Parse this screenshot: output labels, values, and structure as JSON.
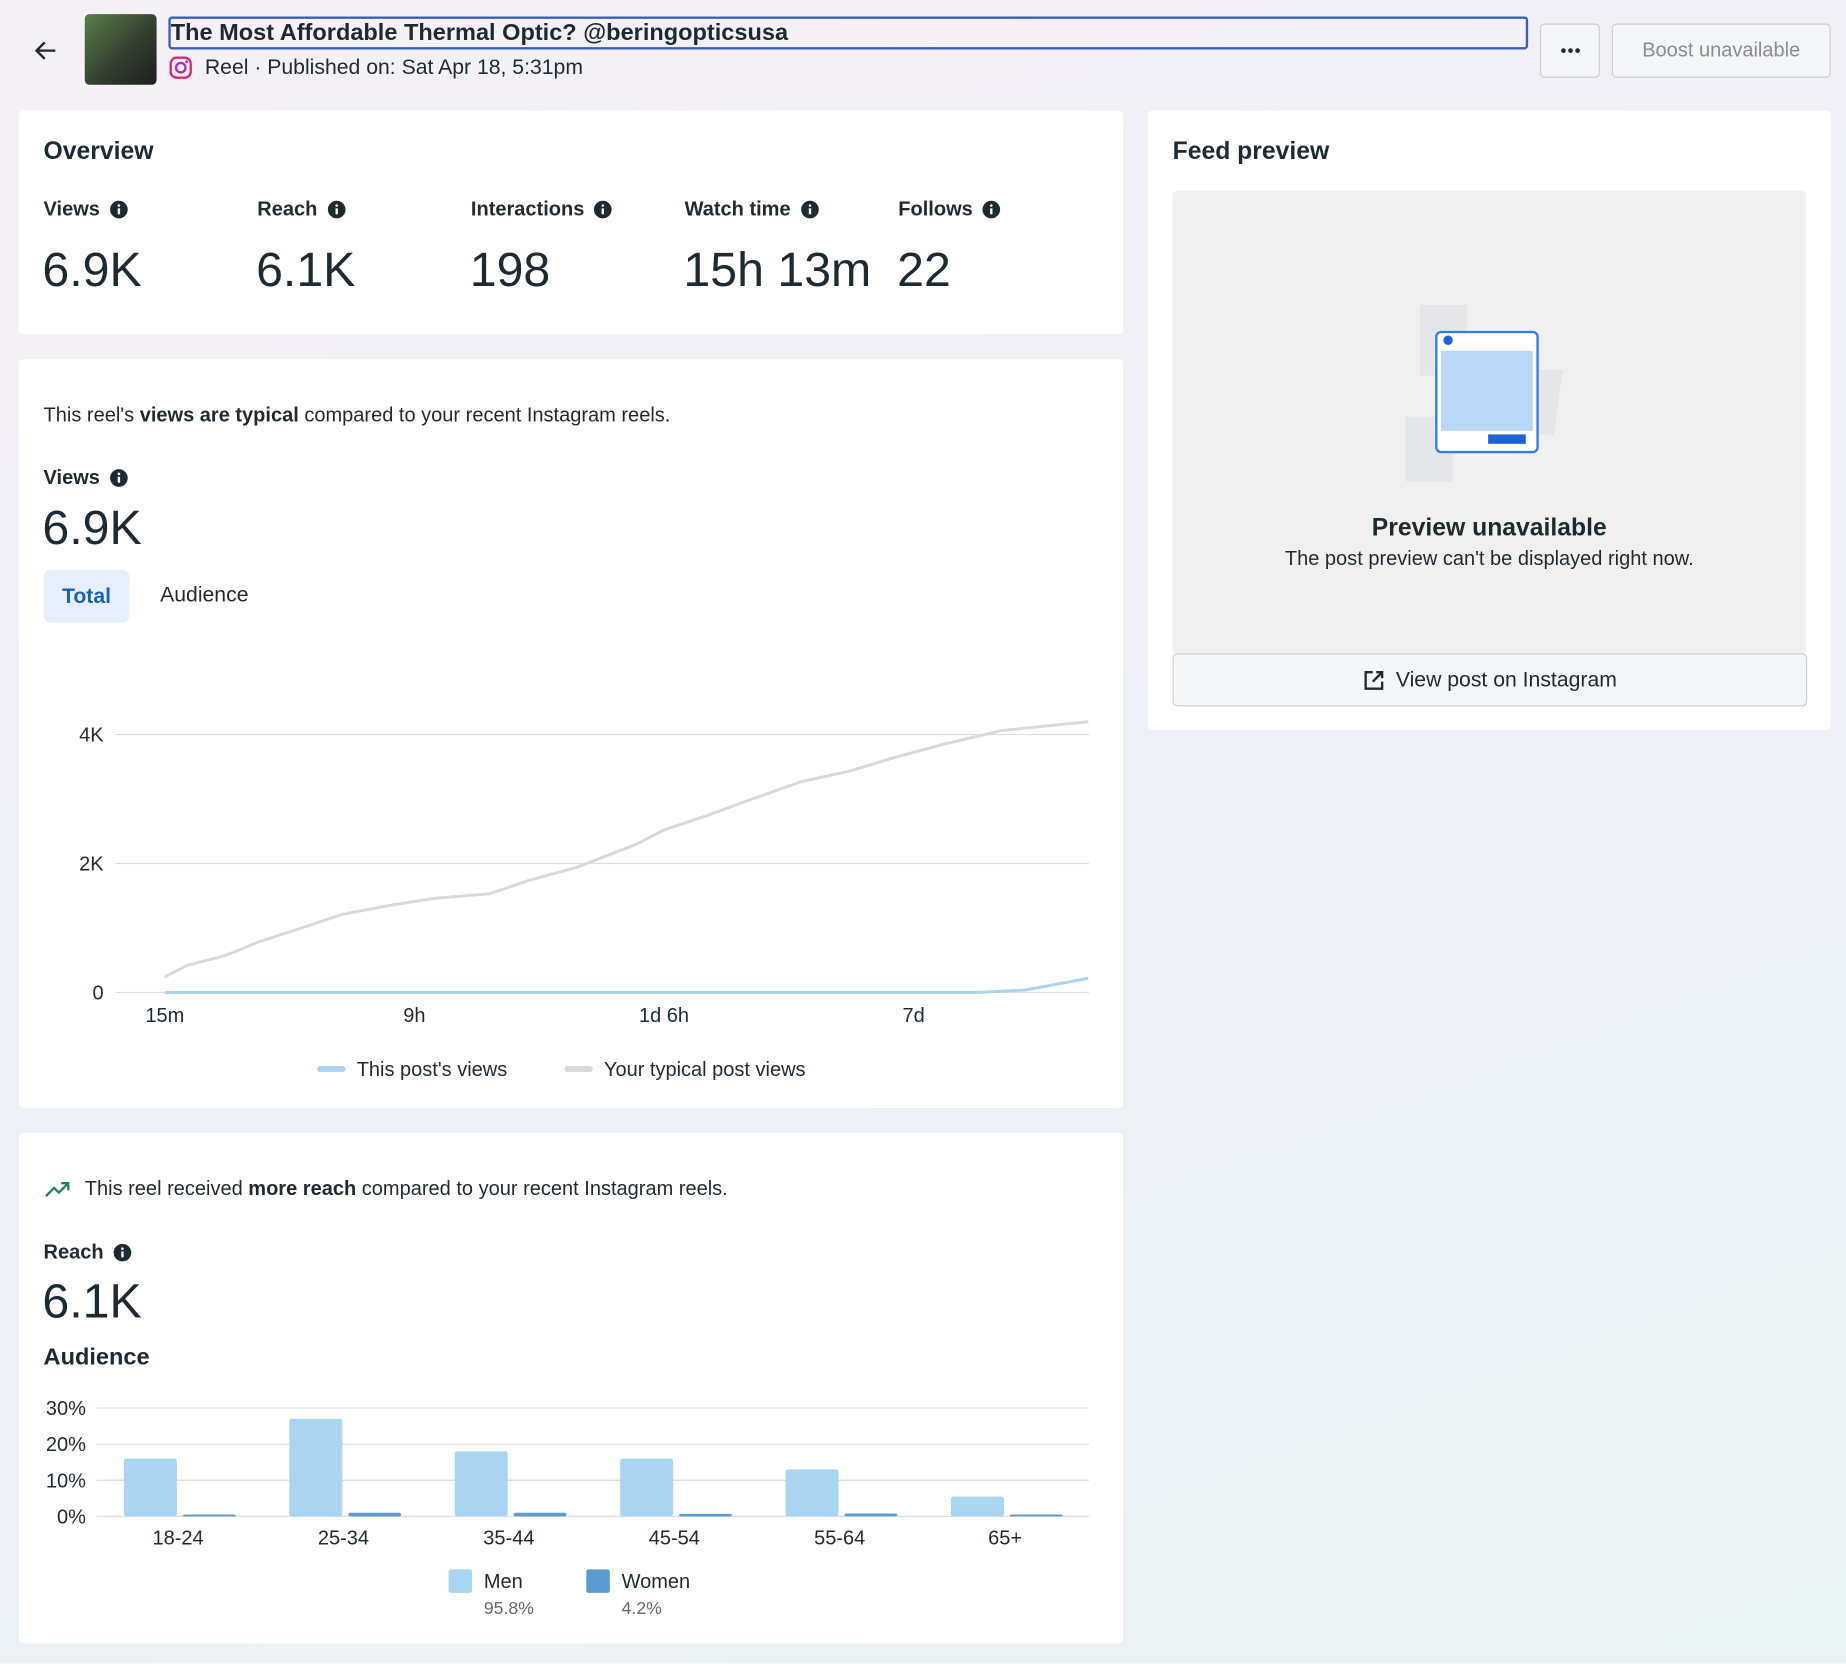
{
  "header": {
    "title": "The Most Affordable Thermal Optic? @beringopticsusa",
    "subtitle": "Reel · Published on: Sat Apr 18, 5:31pm",
    "boost": "Boost unavailable"
  },
  "overview": {
    "title": "Overview",
    "metrics": [
      {
        "label": "Views",
        "value": "6.9K"
      },
      {
        "label": "Reach",
        "value": "6.1K"
      },
      {
        "label": "Interactions",
        "value": "198"
      },
      {
        "label": "Watch time",
        "value": "15h 13m"
      },
      {
        "label": "Follows",
        "value": "22"
      }
    ]
  },
  "views_section": {
    "summary": [
      "This reel's ",
      "views are typical",
      " compared to your recent Instagram reels."
    ],
    "label": "Views",
    "value": "6.9K",
    "tabs": [
      "Total",
      "Audience"
    ]
  },
  "reach_section": {
    "summary": [
      "This reel received ",
      "more reach",
      " compared to your recent Instagram reels."
    ],
    "label": "Reach",
    "value": "6.1K",
    "audience_title": "Audience"
  },
  "feed_preview": {
    "title": "Feed preview",
    "heading": "Preview unavailable",
    "message": "The post preview can't be displayed right now.",
    "button": "View post on Instagram"
  },
  "chart_data": [
    {
      "type": "line",
      "xlim": [
        -0.2,
        3.7
      ],
      "xticks": [
        {
          "value": 0,
          "label": "15m"
        },
        {
          "value": 1,
          "label": "9h"
        },
        {
          "value": 2,
          "label": "1d 6h"
        },
        {
          "value": 3,
          "label": "7d"
        }
      ],
      "ylim": [
        0,
        4200
      ],
      "yticks": [
        0,
        {
          "value": 2000,
          "label": "2K"
        },
        {
          "value": 4000,
          "label": "4K"
        }
      ],
      "grid": true,
      "series": [
        {
          "name": "This post's views",
          "color": "#a9d4f2",
          "x": [
            0,
            3.26,
            3.45,
            3.7
          ],
          "values": [
            0,
            0,
            40,
            220
          ]
        },
        {
          "name": "Your typical post views",
          "color": "#d9d9d9",
          "x": [
            0,
            0.09,
            0.24,
            0.38,
            0.54,
            0.71,
            0.9,
            1.08,
            1.3,
            1.46,
            1.65,
            1.89,
            2.0,
            2.17,
            2.36,
            2.55,
            2.74,
            2.92,
            3.11,
            3.35,
            3.7
          ],
          "values": [
            240,
            420,
            570,
            790,
            990,
            1210,
            1350,
            1460,
            1530,
            1740,
            1940,
            2300,
            2520,
            2740,
            3010,
            3270,
            3430,
            3640,
            3840,
            4060,
            4200
          ]
        }
      ]
    },
    {
      "type": "bar",
      "categories": [
        "18-24",
        "25-34",
        "35-44",
        "45-54",
        "55-64",
        "65+"
      ],
      "ylim": [
        0,
        30
      ],
      "yticks": [
        {
          "value": 0,
          "label": "0%"
        },
        {
          "value": 10,
          "label": "10%"
        },
        {
          "value": 20,
          "label": "20%"
        },
        {
          "value": 30,
          "label": "30%"
        }
      ],
      "grid": true,
      "series": [
        {
          "name": "Men",
          "color": "#a9d4f2",
          "share": "95.8%",
          "values": [
            16,
            27,
            18,
            16,
            13,
            5.5
          ]
        },
        {
          "name": "Women",
          "color": "#5b9bd0",
          "share": "4.2%",
          "values": [
            0.5,
            1,
            1,
            0.7,
            0.8,
            0.5
          ]
        }
      ]
    }
  ]
}
